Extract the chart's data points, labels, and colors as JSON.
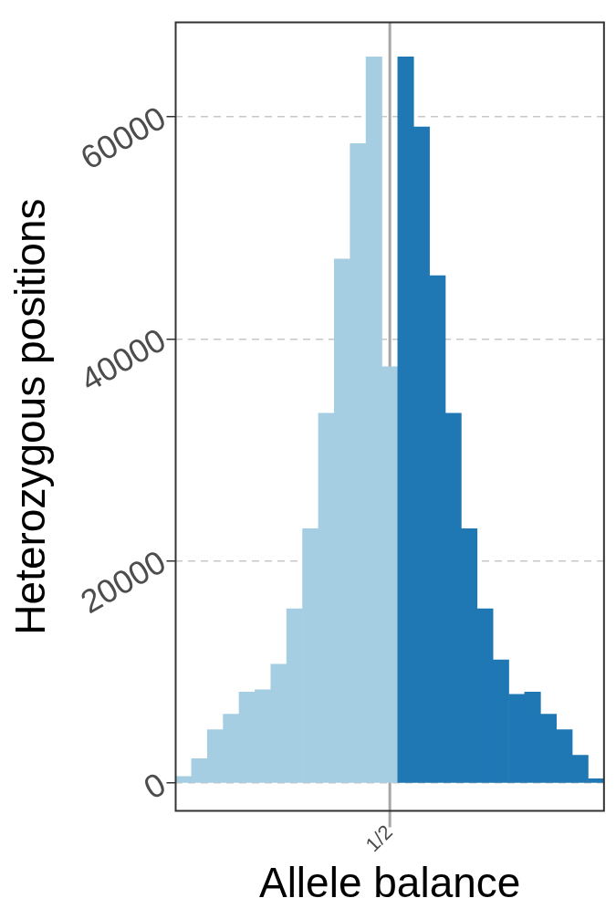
{
  "chart_data": {
    "type": "bar",
    "xlabel": "Allele balance",
    "ylabel": "Heterozygous positions",
    "categories": [
      null,
      null,
      null,
      null,
      null,
      null,
      null,
      null,
      null,
      null,
      null,
      null,
      null,
      "1/2",
      null,
      null,
      null,
      null,
      null,
      null,
      null,
      null,
      null,
      null,
      null,
      null,
      null
    ],
    "values": [
      600,
      2200,
      4800,
      6200,
      8200,
      8400,
      10700,
      15700,
      22900,
      33300,
      47200,
      57600,
      65400,
      37500,
      65400,
      59100,
      45700,
      33300,
      22900,
      15700,
      11100,
      8000,
      8200,
      6200,
      4800,
      2500,
      400
    ],
    "colors": [
      "#a6cee3",
      "#a6cee3",
      "#a6cee3",
      "#a6cee3",
      "#a6cee3",
      "#a6cee3",
      "#a6cee3",
      "#a6cee3",
      "#a6cee3",
      "#a6cee3",
      "#a6cee3",
      "#a6cee3",
      "#a6cee3",
      "#a6cee3",
      "#1f78b4",
      "#1f78b4",
      "#1f78b4",
      "#1f78b4",
      "#1f78b4",
      "#1f78b4",
      "#1f78b4",
      "#1f78b4",
      "#1f78b4",
      "#1f78b4",
      "#1f78b4",
      "#1f78b4",
      "#1f78b4"
    ],
    "ylim": [
      -2500,
      68500
    ],
    "yticks": [
      0,
      20000,
      40000,
      60000
    ],
    "grid": "y",
    "line_style": "dashed",
    "ref_lines": [
      {
        "axis": "x",
        "value": "1/2",
        "label": null,
        "color": "#a6a6a6"
      }
    ]
  }
}
